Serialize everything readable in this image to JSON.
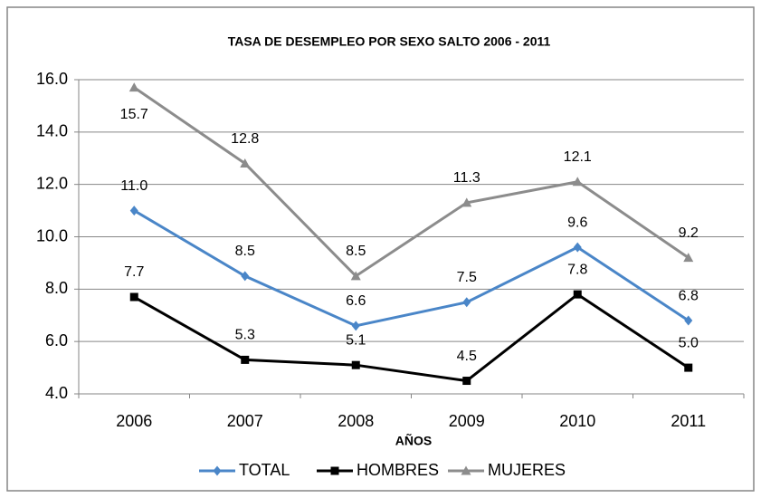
{
  "chart_data": {
    "type": "line",
    "title": "TASA DE DESEMPLEO POR SEXO SALTO 2006 - 2011",
    "x_label": "AÑOS",
    "categories": [
      "2006",
      "2007",
      "2008",
      "2009",
      "2010",
      "2011"
    ],
    "series": [
      {
        "name": "TOTAL",
        "color": "#4a86c8",
        "marker": "diamond",
        "values": [
          11.0,
          8.5,
          6.6,
          7.5,
          9.6,
          6.8
        ],
        "value_labels": [
          "11.0",
          "8.5",
          "6.6",
          "7.5",
          "9.6",
          "6.8"
        ]
      },
      {
        "name": "HOMBRES",
        "color": "#000000",
        "marker": "square",
        "values": [
          7.7,
          5.3,
          5.1,
          4.5,
          7.8,
          5.0
        ],
        "value_labels": [
          "7.7",
          "5.3",
          "5.1",
          "4.5",
          "7.8",
          "5.0"
        ]
      },
      {
        "name": "MUJERES",
        "color": "#8c8c8c",
        "marker": "triangle",
        "values": [
          15.7,
          12.8,
          8.5,
          11.3,
          12.1,
          9.2
        ],
        "value_labels": [
          "15.7",
          "12.8",
          "8.5",
          "11.3",
          "12.1",
          "9.2"
        ]
      }
    ],
    "ylim": [
      4,
      16
    ],
    "yticks": [
      {
        "value": 4,
        "label": "4.0"
      },
      {
        "value": 6,
        "label": "6.0"
      },
      {
        "value": 8,
        "label": "8.0"
      },
      {
        "value": 10,
        "label": "10.0"
      },
      {
        "value": 12,
        "label": "12.0"
      },
      {
        "value": 14,
        "label": "14.0"
      },
      {
        "value": 16,
        "label": "16.0"
      }
    ],
    "grid": true,
    "legend": "bottom"
  }
}
